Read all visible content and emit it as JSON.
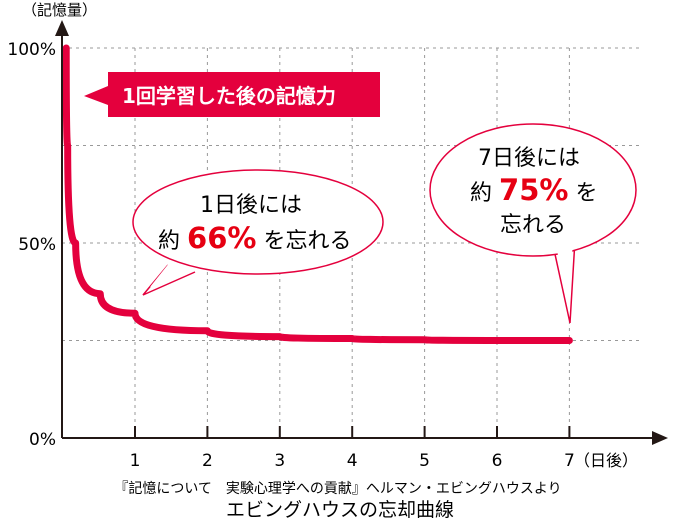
{
  "chart_data": {
    "type": "line",
    "title": "エビングハウスの忘却曲線",
    "source": "『記憶について　実験心理学への貢献』ヘルマン・エビングハウスより",
    "ylabel": "（記憶量）",
    "xlabel_suffix": "（日後）",
    "xlim": [
      0,
      7
    ],
    "ylim": [
      0,
      100
    ],
    "x_ticks": [
      "1",
      "2",
      "3",
      "4",
      "5",
      "6",
      "7"
    ],
    "y_ticks": [
      {
        "value": 100,
        "label": "100%"
      },
      {
        "value": 50,
        "label": "50%"
      },
      {
        "value": 0,
        "label": "0%"
      }
    ],
    "grid": true,
    "grid_y": [
      25,
      50,
      75,
      100
    ],
    "series": [
      {
        "name": "1回学習した後の記憶力",
        "x": [
          0.05,
          0.07,
          0.18,
          0.52,
          1,
          2,
          3,
          4,
          5,
          6,
          7
        ],
        "y": [
          100,
          75,
          50,
          37,
          32,
          27.5,
          26,
          25.5,
          25.2,
          25,
          25
        ]
      }
    ],
    "annotations": {
      "banner": "1回学習した後の記憶力",
      "day1": {
        "line1": "1日後には",
        "pre": "約",
        "value": "66%",
        "post": "を忘れる"
      },
      "day7": {
        "line1": "7日後には",
        "pre": "約",
        "value": "75%",
        "post": "を",
        "line3": "忘れる"
      }
    },
    "colors": {
      "curve": "#e4003d",
      "emph": "#e60012",
      "axis": "#231815",
      "grid": "#999999"
    }
  }
}
